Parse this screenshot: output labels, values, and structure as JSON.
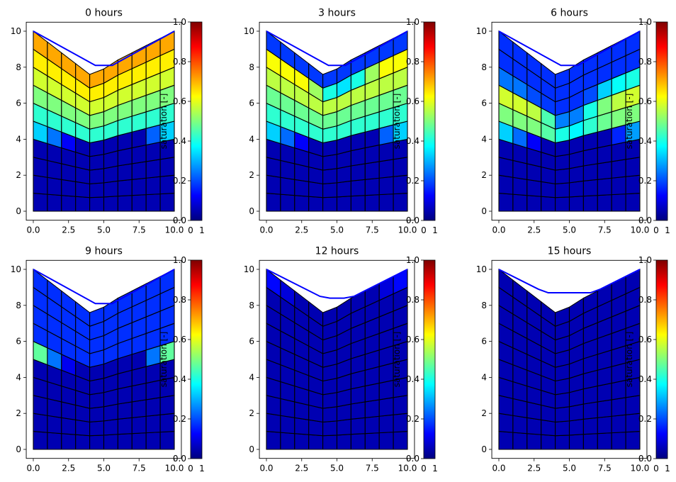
{
  "chart_data": {
    "type": "heatmap",
    "colormap": "jet",
    "colormap_stops": [
      "#00007f",
      "#0000ff",
      "#007fff",
      "#00ffff",
      "#7fff7f",
      "#ffff00",
      "#ff7f00",
      "#ff0000",
      "#7f0000"
    ],
    "cell_edge_color": "#000000",
    "water_line_color": "#0000ff",
    "grid": false,
    "mesh": {
      "x_nodes": [
        0,
        1,
        2,
        3,
        4,
        5,
        6,
        7,
        8,
        9,
        10
      ],
      "n_layers": 10,
      "surface_z": [
        10.0,
        9.4,
        8.8,
        8.2,
        7.6,
        7.9,
        8.4,
        8.8,
        9.2,
        9.6,
        10.0
      ],
      "bottom_z": [
        0,
        0,
        0,
        0,
        0,
        0,
        0,
        0,
        0,
        0,
        0
      ],
      "layer_nodes_z": [
        [
          0,
          0,
          0,
          0,
          0,
          0,
          0,
          0,
          0,
          0,
          0
        ],
        [
          1.0,
          0.94,
          0.88,
          0.82,
          0.76,
          0.79,
          0.84,
          0.88,
          0.92,
          0.96,
          1.0
        ],
        [
          2.0,
          1.88,
          1.76,
          1.64,
          1.52,
          1.58,
          1.68,
          1.76,
          1.84,
          1.92,
          2.0
        ],
        [
          3.0,
          2.82,
          2.64,
          2.46,
          2.28,
          2.37,
          2.52,
          2.64,
          2.76,
          2.88,
          3.0
        ],
        [
          4.0,
          3.76,
          3.52,
          3.28,
          3.04,
          3.16,
          3.36,
          3.52,
          3.68,
          3.84,
          4.0
        ],
        [
          5.0,
          4.7,
          4.4,
          4.1,
          3.8,
          3.95,
          4.2,
          4.4,
          4.6,
          4.8,
          5.0
        ],
        [
          6.0,
          5.64,
          5.28,
          4.92,
          4.56,
          4.74,
          5.04,
          5.28,
          5.52,
          5.76,
          6.0
        ],
        [
          7.0,
          6.58,
          6.16,
          5.74,
          5.32,
          5.53,
          5.88,
          6.16,
          6.44,
          6.72,
          7.0
        ],
        [
          8.0,
          7.52,
          7.04,
          6.56,
          6.08,
          6.32,
          6.72,
          7.04,
          7.36,
          7.68,
          8.0
        ],
        [
          9.0,
          8.46,
          7.92,
          7.38,
          6.84,
          7.11,
          7.56,
          7.92,
          8.28,
          8.64,
          9.0
        ],
        [
          10.0,
          9.4,
          8.8,
          8.2,
          7.6,
          7.9,
          8.4,
          8.8,
          9.2,
          9.6,
          10.0
        ]
      ]
    },
    "xlim": [
      -0.5,
      10.5
    ],
    "ylim": [
      -0.5,
      10.5
    ],
    "x_ticks": [
      0,
      2.5,
      5,
      7.5,
      10
    ],
    "x_tick_labels": [
      "0.0",
      "2.5",
      "5.0",
      "7.5",
      "10.0"
    ],
    "y_ticks": [
      0,
      2,
      4,
      6,
      8,
      10
    ],
    "y_tick_labels": [
      "0",
      "2",
      "4",
      "6",
      "8",
      "10"
    ],
    "colorbar": {
      "label": "saturation [-]",
      "range": [
        0,
        1
      ],
      "ticks": [
        0,
        0.2,
        0.4,
        0.6,
        0.8,
        1.0
      ],
      "tick_labels": [
        "0.0",
        "0.2",
        "0.4",
        "0.6",
        "0.8",
        "1.0"
      ],
      "x_tick_labels": [
        "0",
        "1"
      ]
    },
    "panels": [
      {
        "title": "0 hours",
        "water_line": [
          [
            0,
            10.0
          ],
          [
            4.4,
            8.1
          ],
          [
            5.6,
            8.1
          ],
          [
            10,
            10.0
          ]
        ],
        "saturation": [
          [
            0.05,
            0.05,
            0.05,
            0.05,
            0.05,
            0.05,
            0.05,
            0.05,
            0.05,
            0.05
          ],
          [
            0.05,
            0.05,
            0.05,
            0.05,
            0.05,
            0.05,
            0.05,
            0.05,
            0.05,
            0.05
          ],
          [
            0.05,
            0.05,
            0.05,
            0.05,
            0.05,
            0.05,
            0.05,
            0.05,
            0.05,
            0.05
          ],
          [
            0.05,
            0.05,
            0.05,
            0.05,
            0.05,
            0.05,
            0.05,
            0.05,
            0.05,
            0.05
          ],
          [
            0.33,
            0.24,
            0.12,
            0.05,
            0.05,
            0.05,
            0.05,
            0.05,
            0.22,
            0.33
          ],
          [
            0.42,
            0.42,
            0.42,
            0.42,
            0.42,
            0.42,
            0.42,
            0.42,
            0.42,
            0.42
          ],
          [
            0.5,
            0.5,
            0.5,
            0.5,
            0.5,
            0.5,
            0.5,
            0.5,
            0.5,
            0.5
          ],
          [
            0.58,
            0.58,
            0.58,
            0.58,
            0.58,
            0.58,
            0.58,
            0.58,
            0.58,
            0.58
          ],
          [
            0.64,
            0.64,
            0.64,
            0.64,
            0.64,
            0.64,
            0.64,
            0.64,
            0.64,
            0.64
          ],
          [
            0.71,
            0.71,
            0.71,
            0.71,
            0.71,
            0.71,
            0.71,
            0.71,
            0.71,
            0.71
          ]
        ]
      },
      {
        "title": "3 hours",
        "water_line": [
          [
            0,
            10.0
          ],
          [
            4.4,
            8.1
          ],
          [
            5.6,
            8.1
          ],
          [
            10,
            10.0
          ]
        ],
        "saturation": [
          [
            0.05,
            0.05,
            0.05,
            0.05,
            0.05,
            0.05,
            0.05,
            0.05,
            0.05,
            0.05
          ],
          [
            0.05,
            0.05,
            0.05,
            0.05,
            0.05,
            0.05,
            0.05,
            0.05,
            0.05,
            0.05
          ],
          [
            0.05,
            0.05,
            0.05,
            0.05,
            0.05,
            0.05,
            0.05,
            0.05,
            0.05,
            0.05
          ],
          [
            0.05,
            0.05,
            0.05,
            0.05,
            0.05,
            0.05,
            0.05,
            0.05,
            0.05,
            0.05
          ],
          [
            0.33,
            0.23,
            0.12,
            0.05,
            0.05,
            0.05,
            0.05,
            0.05,
            0.22,
            0.33
          ],
          [
            0.42,
            0.42,
            0.42,
            0.42,
            0.42,
            0.42,
            0.42,
            0.42,
            0.42,
            0.42
          ],
          [
            0.48,
            0.48,
            0.48,
            0.48,
            0.48,
            0.48,
            0.48,
            0.48,
            0.48,
            0.48
          ],
          [
            0.56,
            0.56,
            0.56,
            0.56,
            0.56,
            0.56,
            0.56,
            0.56,
            0.56,
            0.56
          ],
          [
            0.62,
            0.62,
            0.62,
            0.53,
            0.4,
            0.35,
            0.4,
            0.53,
            0.62,
            0.62
          ],
          [
            0.18,
            0.18,
            0.18,
            0.18,
            0.18,
            0.18,
            0.18,
            0.18,
            0.18,
            0.18
          ]
        ]
      },
      {
        "title": "6 hours",
        "water_line": [
          [
            0,
            10.0
          ],
          [
            4.4,
            8.1
          ],
          [
            5.6,
            8.1
          ],
          [
            10,
            10.0
          ]
        ],
        "saturation": [
          [
            0.05,
            0.05,
            0.05,
            0.05,
            0.05,
            0.05,
            0.05,
            0.05,
            0.05,
            0.05
          ],
          [
            0.05,
            0.05,
            0.05,
            0.05,
            0.05,
            0.05,
            0.05,
            0.05,
            0.05,
            0.05
          ],
          [
            0.05,
            0.05,
            0.05,
            0.05,
            0.05,
            0.05,
            0.05,
            0.05,
            0.05,
            0.05
          ],
          [
            0.05,
            0.05,
            0.05,
            0.05,
            0.05,
            0.05,
            0.05,
            0.05,
            0.05,
            0.05
          ],
          [
            0.33,
            0.23,
            0.12,
            0.05,
            0.05,
            0.05,
            0.05,
            0.05,
            0.16,
            0.28
          ],
          [
            0.5,
            0.5,
            0.5,
            0.46,
            0.4,
            0.37,
            0.42,
            0.48,
            0.5,
            0.5
          ],
          [
            0.58,
            0.58,
            0.56,
            0.45,
            0.25,
            0.25,
            0.4,
            0.5,
            0.56,
            0.58
          ],
          [
            0.24,
            0.24,
            0.2,
            0.18,
            0.17,
            0.17,
            0.2,
            0.33,
            0.38,
            0.4
          ],
          [
            0.17,
            0.17,
            0.17,
            0.17,
            0.17,
            0.17,
            0.17,
            0.17,
            0.17,
            0.17
          ],
          [
            0.17,
            0.17,
            0.17,
            0.17,
            0.17,
            0.17,
            0.17,
            0.17,
            0.17,
            0.17
          ]
        ]
      },
      {
        "title": "9 hours",
        "water_line": [
          [
            0,
            10.0
          ],
          [
            4.4,
            8.1
          ],
          [
            5.6,
            8.1
          ],
          [
            10,
            10.0
          ]
        ],
        "saturation": [
          [
            0.05,
            0.05,
            0.05,
            0.05,
            0.05,
            0.05,
            0.05,
            0.05,
            0.05,
            0.05
          ],
          [
            0.05,
            0.05,
            0.05,
            0.05,
            0.05,
            0.05,
            0.05,
            0.05,
            0.05,
            0.05
          ],
          [
            0.05,
            0.05,
            0.05,
            0.05,
            0.05,
            0.05,
            0.05,
            0.05,
            0.05,
            0.05
          ],
          [
            0.05,
            0.05,
            0.05,
            0.05,
            0.05,
            0.05,
            0.05,
            0.05,
            0.05,
            0.05
          ],
          [
            0.05,
            0.05,
            0.05,
            0.05,
            0.05,
            0.05,
            0.05,
            0.05,
            0.05,
            0.05
          ],
          [
            0.47,
            0.24,
            0.11,
            0.05,
            0.05,
            0.05,
            0.05,
            0.05,
            0.24,
            0.47
          ],
          [
            0.17,
            0.17,
            0.17,
            0.17,
            0.17,
            0.17,
            0.17,
            0.17,
            0.17,
            0.17
          ],
          [
            0.17,
            0.17,
            0.17,
            0.17,
            0.17,
            0.17,
            0.17,
            0.17,
            0.17,
            0.17
          ],
          [
            0.17,
            0.17,
            0.17,
            0.17,
            0.17,
            0.17,
            0.17,
            0.17,
            0.17,
            0.17
          ],
          [
            0.17,
            0.17,
            0.17,
            0.17,
            0.17,
            0.17,
            0.17,
            0.17,
            0.17,
            0.17
          ]
        ]
      },
      {
        "title": "12 hours",
        "water_line": [
          [
            0,
            10.0
          ],
          [
            3.8,
            8.5
          ],
          [
            4.5,
            8.4
          ],
          [
            5.5,
            8.4
          ],
          [
            6.2,
            8.5
          ],
          [
            10,
            10.0
          ]
        ],
        "saturation": [
          [
            0.05,
            0.05,
            0.05,
            0.05,
            0.05,
            0.05,
            0.05,
            0.05,
            0.05,
            0.05
          ],
          [
            0.05,
            0.05,
            0.05,
            0.05,
            0.05,
            0.05,
            0.05,
            0.05,
            0.05,
            0.05
          ],
          [
            0.05,
            0.05,
            0.05,
            0.05,
            0.05,
            0.05,
            0.05,
            0.05,
            0.05,
            0.05
          ],
          [
            0.05,
            0.05,
            0.05,
            0.05,
            0.05,
            0.05,
            0.05,
            0.05,
            0.05,
            0.05
          ],
          [
            0.05,
            0.05,
            0.05,
            0.05,
            0.05,
            0.05,
            0.05,
            0.05,
            0.05,
            0.05
          ],
          [
            0.05,
            0.05,
            0.05,
            0.05,
            0.05,
            0.05,
            0.05,
            0.05,
            0.05,
            0.05
          ],
          [
            0.05,
            0.05,
            0.05,
            0.05,
            0.05,
            0.05,
            0.05,
            0.05,
            0.05,
            0.05
          ],
          [
            0.05,
            0.05,
            0.05,
            0.05,
            0.05,
            0.05,
            0.05,
            0.05,
            0.05,
            0.05
          ],
          [
            0.05,
            0.05,
            0.05,
            0.05,
            0.05,
            0.05,
            0.05,
            0.05,
            0.05,
            0.05
          ],
          [
            0.13,
            0.09,
            0.05,
            0.05,
            0.05,
            0.05,
            0.05,
            0.05,
            0.09,
            0.13
          ]
        ]
      },
      {
        "title": "15 hours",
        "water_line": [
          [
            0,
            10.0
          ],
          [
            2.8,
            8.9
          ],
          [
            3.5,
            8.7
          ],
          [
            6.5,
            8.7
          ],
          [
            7.2,
            8.9
          ],
          [
            10,
            10.0
          ]
        ],
        "saturation": [
          [
            0.05,
            0.05,
            0.05,
            0.05,
            0.05,
            0.05,
            0.05,
            0.05,
            0.05,
            0.05
          ],
          [
            0.05,
            0.05,
            0.05,
            0.05,
            0.05,
            0.05,
            0.05,
            0.05,
            0.05,
            0.05
          ],
          [
            0.05,
            0.05,
            0.05,
            0.05,
            0.05,
            0.05,
            0.05,
            0.05,
            0.05,
            0.05
          ],
          [
            0.05,
            0.05,
            0.05,
            0.05,
            0.05,
            0.05,
            0.05,
            0.05,
            0.05,
            0.05
          ],
          [
            0.05,
            0.05,
            0.05,
            0.05,
            0.05,
            0.05,
            0.05,
            0.05,
            0.05,
            0.05
          ],
          [
            0.05,
            0.05,
            0.05,
            0.05,
            0.05,
            0.05,
            0.05,
            0.05,
            0.05,
            0.05
          ],
          [
            0.05,
            0.05,
            0.05,
            0.05,
            0.05,
            0.05,
            0.05,
            0.05,
            0.05,
            0.05
          ],
          [
            0.05,
            0.05,
            0.05,
            0.05,
            0.05,
            0.05,
            0.05,
            0.05,
            0.05,
            0.05
          ],
          [
            0.05,
            0.05,
            0.05,
            0.05,
            0.05,
            0.05,
            0.05,
            0.05,
            0.05,
            0.05
          ],
          [
            0.05,
            0.05,
            0.05,
            0.05,
            0.05,
            0.05,
            0.05,
            0.05,
            0.05,
            0.05
          ]
        ]
      }
    ]
  }
}
